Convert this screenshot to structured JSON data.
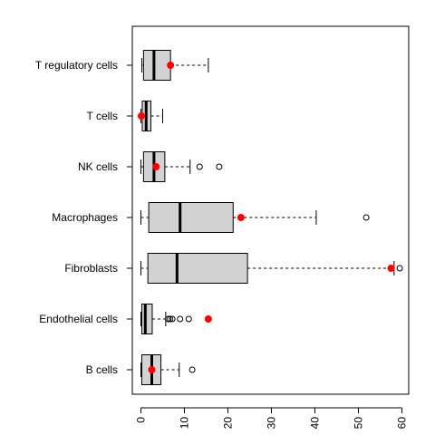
{
  "chart_data": {
    "type": "boxplot",
    "orientation": "horizontal",
    "title": "",
    "xlabel": "",
    "ylabel": "",
    "xlim": [
      -1,
      61
    ],
    "x_ticks": [
      0,
      10,
      20,
      30,
      40,
      50,
      60
    ],
    "x_tick_labels": [
      "0",
      "10",
      "20",
      "30",
      "40",
      "50",
      "60"
    ],
    "grid": false,
    "box_fill": "#d3d3d3",
    "marker_color": "#ff0000",
    "categories": [
      {
        "label": "T regulatory cells",
        "whisker_low": 0.2,
        "q1": 0.6,
        "median": 3.0,
        "q3": 6.8,
        "whisker_high": 15.5,
        "outliers": [],
        "marker": 6.8
      },
      {
        "label": "T cells",
        "whisker_low": 0.0,
        "q1": 0.3,
        "median": 1.2,
        "q3": 2.3,
        "whisker_high": 5.0,
        "outliers": [],
        "marker": 0.1
      },
      {
        "label": "NK cells",
        "whisker_low": 0.0,
        "q1": 0.6,
        "median": 3.0,
        "q3": 5.5,
        "whisker_high": 11.3,
        "outliers": [
          13.5,
          18.0
        ],
        "marker": 3.5
      },
      {
        "label": "Macrophages",
        "whisker_low": 0.0,
        "q1": 1.8,
        "median": 9.0,
        "q3": 21.2,
        "whisker_high": 40.3,
        "outliers": [
          51.8
        ],
        "marker": 23.0
      },
      {
        "label": "Fibroblasts",
        "whisker_low": 0.0,
        "q1": 1.6,
        "median": 8.3,
        "q3": 24.5,
        "whisker_high": 58.2,
        "outliers": [
          59.5
        ],
        "marker": 57.5
      },
      {
        "label": "Endothelial cells",
        "whisker_low": 0.0,
        "q1": 0.2,
        "median": 1.0,
        "q3": 2.6,
        "whisker_high": 5.7,
        "outliers": [
          6.3,
          6.7,
          7.2,
          9.0,
          11.0
        ],
        "marker": 15.5
      },
      {
        "label": "B cells",
        "whisker_low": 0.0,
        "q1": 0.2,
        "median": 2.5,
        "q3": 4.6,
        "whisker_high": 8.8,
        "outliers": [
          11.8
        ],
        "marker": 2.5
      }
    ]
  }
}
